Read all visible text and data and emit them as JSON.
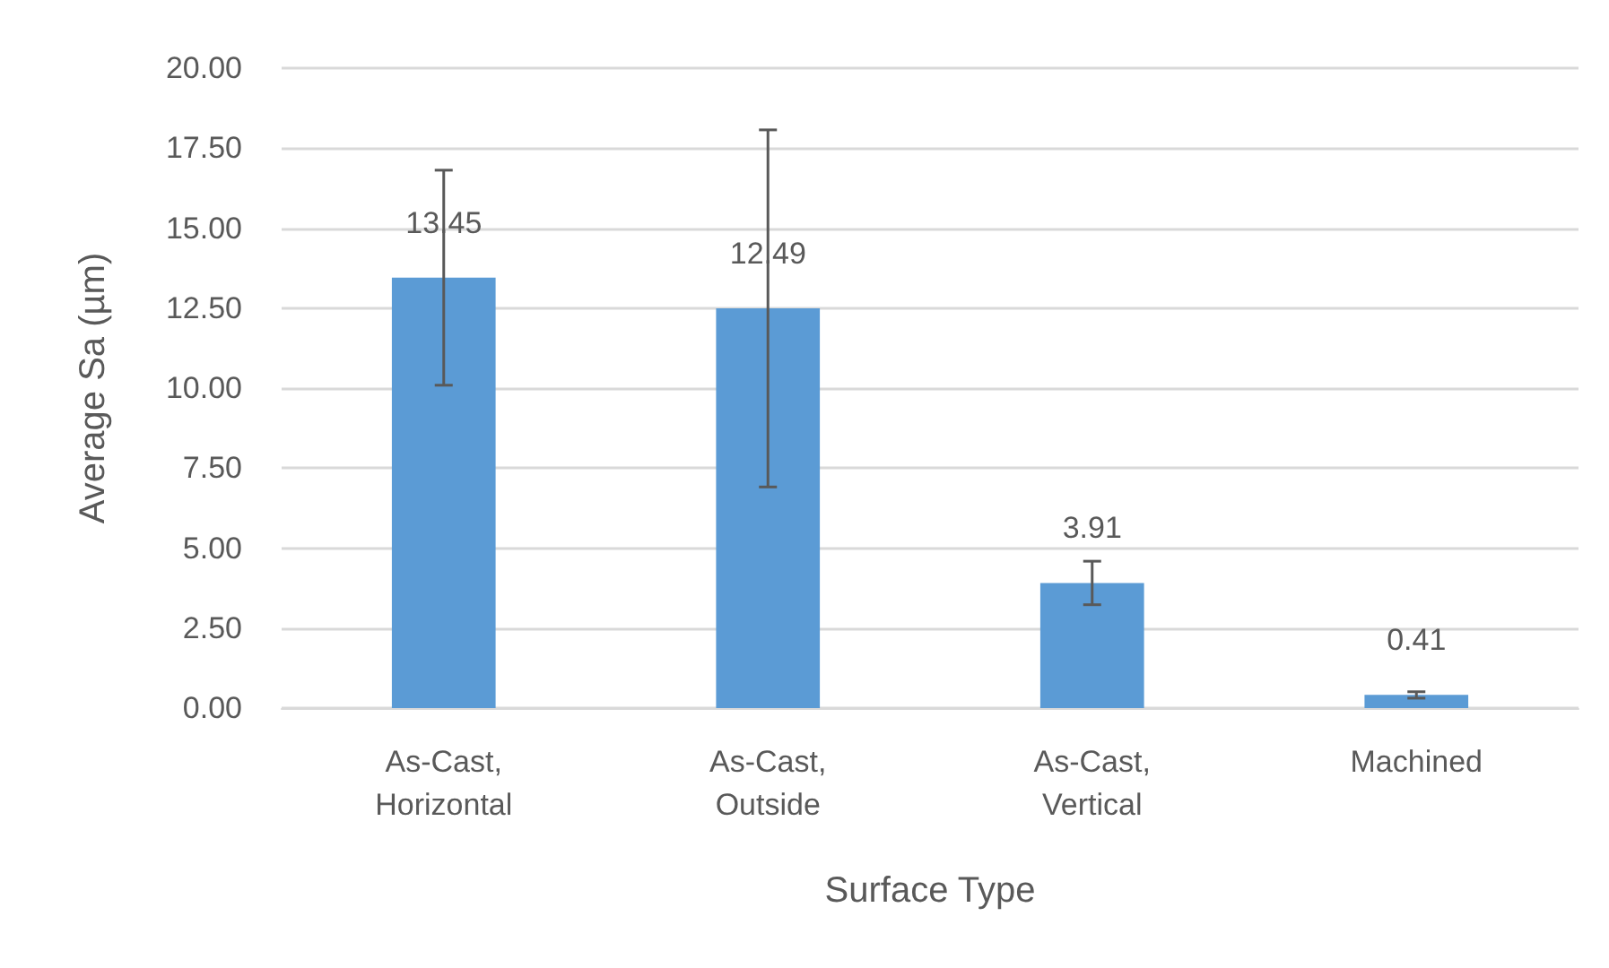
{
  "chart_data": {
    "type": "bar",
    "xlabel": "Surface Type",
    "ylabel": "Average Sa (µm)",
    "categories": [
      "As-Cast, Horizontal",
      "As-Cast, Outside",
      "As-Cast, Vertical",
      "Machined"
    ],
    "values": [
      13.45,
      12.49,
      3.91,
      0.41
    ],
    "color": "#5b9bd5",
    "errors": [
      3.36,
      5.58,
      0.68,
      0.1
    ],
    "data_labels": true,
    "grid": "y",
    "ylim": [
      0,
      20
    ],
    "yticks": [
      {
        "value": 0,
        "label": "0.00"
      },
      {
        "value": 2.5,
        "label": "2.50"
      },
      {
        "value": 5,
        "label": "5.00"
      },
      {
        "value": 7.5,
        "label": "7.50"
      },
      {
        "value": 10,
        "label": "10.00"
      },
      {
        "value": 12.5,
        "label": "12.50"
      },
      {
        "value": 15,
        "label": "15.00"
      },
      {
        "value": 17.5,
        "label": "17.50"
      },
      {
        "value": 20,
        "label": "20.00"
      }
    ]
  }
}
